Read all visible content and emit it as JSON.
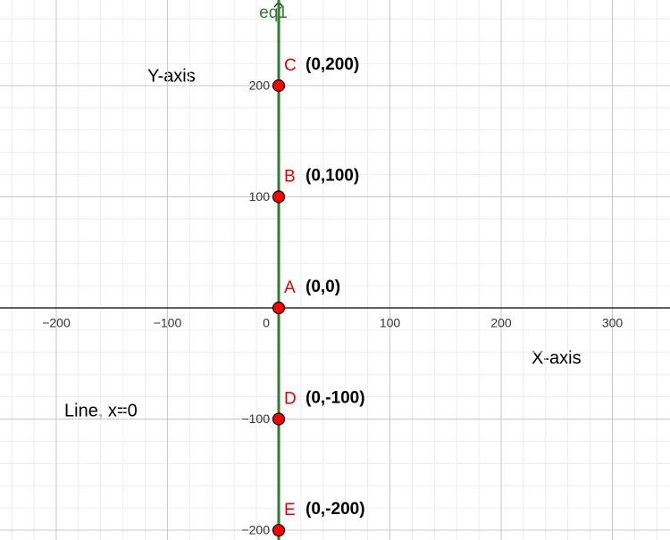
{
  "chart_data": {
    "type": "scatter",
    "point_labels": [
      "A",
      "B",
      "C",
      "D",
      "E"
    ],
    "x": [
      0,
      0,
      0,
      0,
      0
    ],
    "values": [
      0,
      100,
      200,
      -100,
      -200
    ],
    "value_labels": [
      "(0,0)",
      "(0,100)",
      "(0,200)",
      "(0,-100)",
      "(0,-200)"
    ],
    "color": "#ff0000",
    "line": {
      "label": "eq1",
      "x": 0,
      "color": "#2e7d32"
    },
    "annotations": [
      "Y-axis",
      "X-axis",
      "Line, x=0"
    ],
    "xlim": [
      -250.6,
      351.8
    ],
    "ylim": [
      -208.8,
      277.1
    ],
    "xticks": [
      {
        "value": -200,
        "label": "−200"
      },
      {
        "value": -100,
        "label": "−100"
      },
      0,
      100,
      200,
      300
    ],
    "yticks": [
      {
        "value": -200,
        "label": "−200"
      },
      {
        "value": -100,
        "label": "−100"
      },
      100,
      200
    ],
    "grid": true,
    "minor_grid": true
  }
}
